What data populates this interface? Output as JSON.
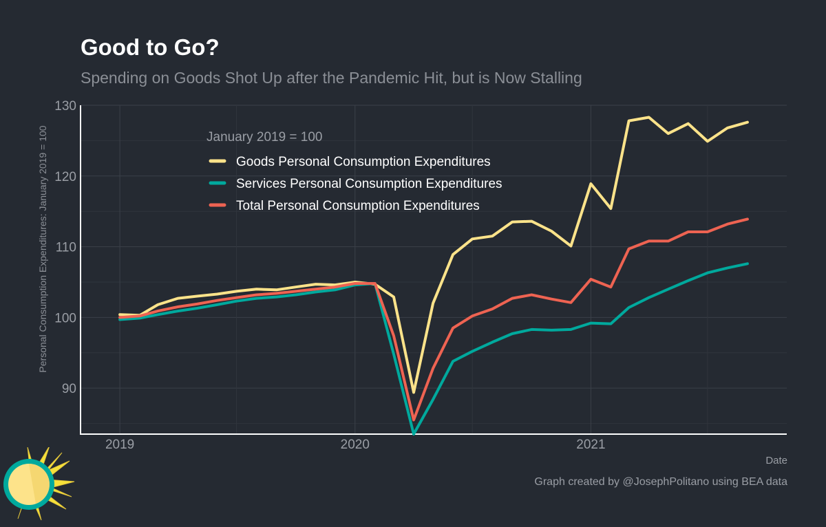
{
  "header": {
    "title": "Good to Go?",
    "subtitle": "Spending on Goods Shot Up after the Pandemic Hit, but is Now Stalling"
  },
  "footer": {
    "credit": "Graph created by @JosephPolitano using BEA data"
  },
  "chart_data": {
    "type": "line",
    "title": "Good to Go?",
    "subtitle": "Spending on Goods Shot Up after the Pandemic Hit, but is Now Stalling",
    "xlabel": "Date",
    "ylabel": "Personal Consumption Expenditures: January 2019 = 100",
    "x": [
      "2019-01",
      "2019-02",
      "2019-03",
      "2019-04",
      "2019-05",
      "2019-06",
      "2019-07",
      "2019-08",
      "2019-09",
      "2019-10",
      "2019-11",
      "2019-12",
      "2020-01",
      "2020-02",
      "2020-03",
      "2020-04",
      "2020-05",
      "2020-06",
      "2020-07",
      "2020-08",
      "2020-09",
      "2020-10",
      "2020-11",
      "2020-12",
      "2021-01",
      "2021-02",
      "2021-03",
      "2021-04",
      "2021-05",
      "2021-06",
      "2021-07",
      "2021-08",
      "2021-09"
    ],
    "xlim": [
      "2018-11-01",
      "2021-11-01"
    ],
    "ylim": [
      83.5,
      130
    ],
    "x_ticks": [
      "2019",
      "2020",
      "2021"
    ],
    "x_tick_dates": [
      "2019-01-01",
      "2020-01-01",
      "2021-01-01"
    ],
    "y_ticks": [
      90,
      100,
      110,
      120,
      130
    ],
    "grid": true,
    "legend_title": "January 2019 = 100",
    "legend_position": "top-left",
    "series": [
      {
        "name": "Goods Personal Consumption Expenditures",
        "color": "#fde38a",
        "values": [
          100.4,
          100.3,
          101.8,
          102.7,
          103.0,
          103.3,
          103.7,
          104.0,
          103.9,
          104.3,
          104.7,
          104.6,
          105.0,
          104.7,
          102.9,
          89.4,
          102.0,
          108.9,
          111.1,
          111.5,
          113.5,
          113.6,
          112.2,
          110.1,
          118.9,
          115.4,
          127.8,
          128.3,
          126.0,
          127.4,
          124.9,
          126.8,
          127.6
        ]
      },
      {
        "name": "Services Personal Consumption Expenditures",
        "color": "#00a99d",
        "values": [
          99.7,
          99.9,
          100.4,
          100.9,
          101.3,
          101.8,
          102.3,
          102.7,
          102.9,
          103.2,
          103.6,
          103.9,
          104.6,
          104.8,
          94.8,
          83.5,
          88.4,
          93.8,
          95.2,
          96.5,
          97.7,
          98.3,
          98.2,
          98.3,
          99.2,
          99.1,
          101.4,
          102.8,
          104.0,
          105.2,
          106.3,
          107.0,
          107.6
        ]
      },
      {
        "name": "Total Personal Consumption Expenditures",
        "color": "#ee6352",
        "values": [
          100.0,
          100.2,
          100.9,
          101.5,
          101.9,
          102.4,
          102.8,
          103.2,
          103.4,
          103.7,
          104.0,
          104.3,
          104.8,
          104.8,
          97.4,
          85.5,
          92.8,
          98.5,
          100.2,
          101.2,
          102.7,
          103.2,
          102.6,
          102.1,
          105.4,
          104.3,
          109.7,
          110.8,
          110.8,
          112.1,
          112.1,
          113.2,
          113.9
        ]
      }
    ]
  }
}
